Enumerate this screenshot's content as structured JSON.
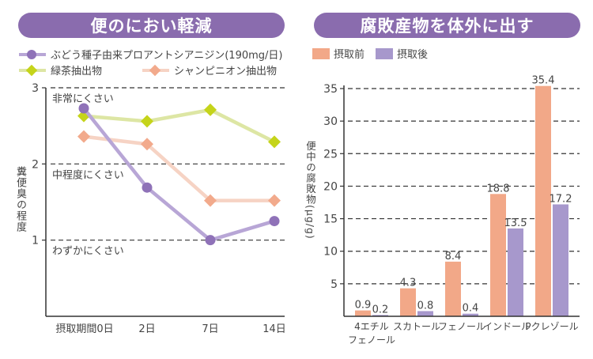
{
  "left_panel": {
    "title": "便のにおい軽減",
    "legend": [
      {
        "label": "ぶどう種子由来プロアントシアニジン(190mg/日)",
        "color": "#8f72b8",
        "line_color": "#b8a6d6",
        "marker": "circle"
      },
      {
        "label": "緑茶抽出物",
        "color": "#c5d41a",
        "line_color": "#dde6a4",
        "marker": "diamond"
      },
      {
        "label": "シャンピニオン抽出物",
        "color": "#f2aa8c",
        "line_color": "#f6d3c4",
        "marker": "diamond"
      }
    ]
  },
  "right_panel": {
    "title": "腐敗産物を体外に出す",
    "legend": [
      {
        "label": "摂取前",
        "color": "#f2a888"
      },
      {
        "label": "摂取後",
        "color": "#a798cc"
      }
    ]
  },
  "chart_data": [
    {
      "type": "line",
      "title": "便のにおい軽減",
      "xlabel": "",
      "ylabel": "糞便臭の程度",
      "x": [
        "摂取期間0日",
        "2日",
        "7日",
        "14日"
      ],
      "ylim": [
        0,
        3
      ],
      "yticks": [
        1,
        2,
        3
      ],
      "grid": "dashed horizontal at ticks",
      "annotations": [
        {
          "y": 3,
          "text": "非常にくさい"
        },
        {
          "y": 2,
          "text": "中程度にくさい"
        },
        {
          "y": 1,
          "text": "わずかにくさい"
        }
      ],
      "series": [
        {
          "name": "ぶどう種子由来プロアントシアニジン(190mg/日)",
          "values": [
            2.73,
            1.69,
            1.0,
            1.25
          ]
        },
        {
          "name": "緑茶抽出物",
          "values": [
            2.63,
            2.56,
            2.71,
            2.29
          ]
        },
        {
          "name": "シャンピニオン抽出物",
          "values": [
            2.36,
            2.26,
            1.52,
            1.52
          ]
        }
      ],
      "legend": "top"
    },
    {
      "type": "bar",
      "title": "腐敗産物を体外に出す",
      "xlabel": "",
      "ylabel": "便中の腐敗物(μg/g)",
      "categories": [
        "4エチル\nフェノール",
        "スカトール",
        "フェノール",
        "インドール",
        "Pクレゾール"
      ],
      "ylim": [
        0,
        35
      ],
      "yticks": [
        5,
        10,
        15,
        20,
        25,
        30,
        35
      ],
      "grid": "dashed horizontal at ticks",
      "series": [
        {
          "name": "摂取前",
          "values": [
            0.9,
            4.3,
            8.4,
            18.8,
            35.4
          ]
        },
        {
          "name": "摂取後",
          "values": [
            0.2,
            0.8,
            0.4,
            13.5,
            17.2
          ]
        }
      ],
      "data_labels": [
        [
          "0.9",
          "4.3",
          "8.4",
          "18.8",
          "35.4"
        ],
        [
          "0.2",
          "0.8",
          "0.4",
          "13.5",
          "17.2"
        ]
      ],
      "legend": "top-left"
    }
  ]
}
